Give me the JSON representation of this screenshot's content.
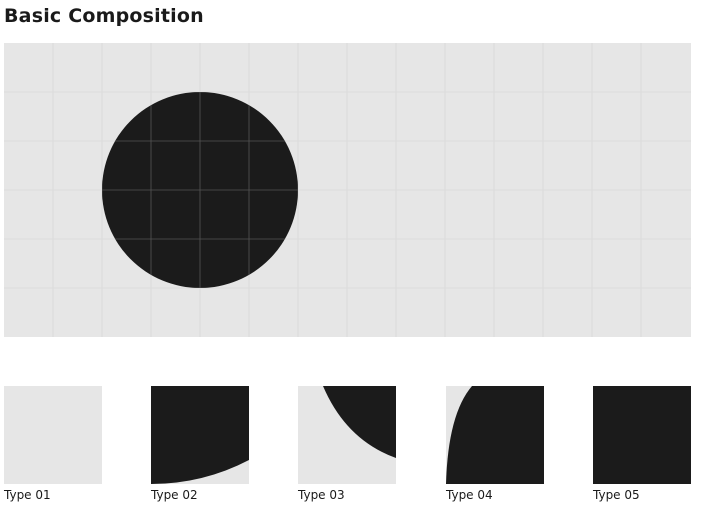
{
  "title": "Basic Composition",
  "colors": {
    "background": "#e6e6e6",
    "shape": "#1b1b1b",
    "grid": "#d9d9d9",
    "grid_on_shape": "#555555"
  },
  "main": {
    "grid_columns": 14,
    "grid_rows": 6,
    "circle_center_cell": [
      4,
      3
    ],
    "circle_radius_cells": 2
  },
  "tiles": [
    {
      "label": "Type 01",
      "shape": "empty"
    },
    {
      "label": "Type 02",
      "shape": "arc-bottom-left"
    },
    {
      "label": "Type 03",
      "shape": "arc-top-right-corner"
    },
    {
      "label": "Type 04",
      "shape": "arc-quarter-bottom"
    },
    {
      "label": "Type 05",
      "shape": "full"
    }
  ]
}
